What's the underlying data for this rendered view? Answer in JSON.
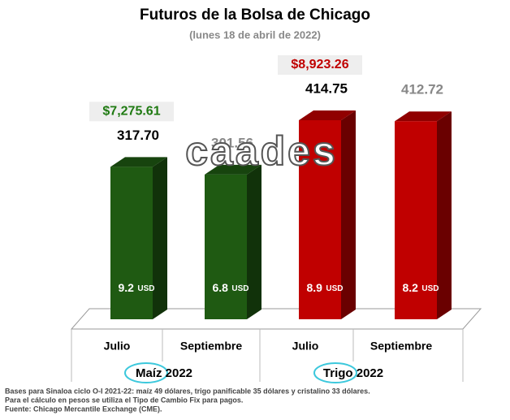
{
  "chart_data": {
    "type": "bar3d",
    "title": "Futuros de la Bolsa de Chicago",
    "subtitle": "(lunes 18 de abril de 2022)",
    "watermark": "caades",
    "unit": "USD",
    "groups": [
      {
        "name": "Maíz 2022",
        "color": "#1f5a12",
        "price_color": "#1f7a12",
        "price": "$7,275.61",
        "categories": [
          "Julio",
          "Septiembre"
        ],
        "values": [
          317.7,
          301.56
        ],
        "value_labels": [
          "317.70",
          "301.56"
        ],
        "usd": [
          9.2,
          6.8
        ]
      },
      {
        "name": "Trigo 2022",
        "color": "#c00000",
        "price_color": "#c00000",
        "price": "$8,923.26",
        "categories": [
          "Julio",
          "Septiembre"
        ],
        "values": [
          414.75,
          412.72
        ],
        "value_labels": [
          "414.75",
          "412.72"
        ],
        "usd": [
          8.9,
          8.2
        ]
      }
    ],
    "notes": [
      "Bases para Sinaloa ciclo O-I 2021-22: maíz 49 dólares, trigo panificable 35 dólares y cristalino 33 dólares.",
      "Para el cálculo en pesos se utiliza el Tipo de Cambio Fix para pagos.",
      "Fuente: Chicago Mercantile Exchange (CME)."
    ]
  }
}
